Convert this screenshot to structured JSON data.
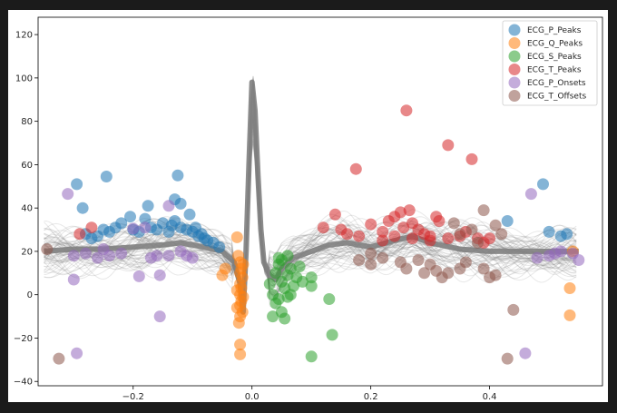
{
  "chart_data": {
    "type": "scatter",
    "title": "",
    "xlabel": "",
    "ylabel": "",
    "xlim": [
      -0.36,
      0.59
    ],
    "ylim": [
      -42,
      128
    ],
    "x_ticks": [
      -0.2,
      0.0,
      0.2,
      0.4
    ],
    "x_tick_labels": [
      "−0.2",
      "0.0",
      "0.2",
      "0.4"
    ],
    "y_ticks": [
      -40,
      -20,
      0,
      20,
      40,
      60,
      80,
      100,
      120
    ],
    "y_tick_labels": [
      "−40",
      "−20",
      "0",
      "20",
      "40",
      "60",
      "80",
      "100",
      "120"
    ],
    "grid": false,
    "legend_position": "top-right",
    "background_line_color": "#808080",
    "average_line": {
      "x": [
        -0.35,
        -0.3,
        -0.25,
        -0.2,
        -0.15,
        -0.12,
        -0.08,
        -0.05,
        -0.03,
        -0.02,
        -0.015,
        -0.01,
        -0.005,
        0.0,
        0.005,
        0.01,
        0.015,
        0.02,
        0.03,
        0.04,
        0.05,
        0.07,
        0.1,
        0.13,
        0.16,
        0.2,
        0.24,
        0.27,
        0.3,
        0.35,
        0.4,
        0.45,
        0.5,
        0.55
      ],
      "y": [
        20,
        21,
        21,
        22,
        23,
        24,
        22,
        20,
        15,
        5,
        -8,
        20,
        60,
        98,
        85,
        55,
        30,
        15,
        9,
        7,
        12,
        17,
        20,
        23,
        24,
        22,
        25,
        27,
        24,
        21,
        20,
        20,
        20,
        20
      ]
    },
    "series": [
      {
        "name": "ECG_P_Peaks",
        "color": "#1f77b4",
        "points": [
          [
            -0.295,
            51
          ],
          [
            -0.285,
            40
          ],
          [
            -0.245,
            54.5
          ],
          [
            -0.205,
            36
          ],
          [
            -0.175,
            41
          ],
          [
            -0.13,
            44
          ],
          [
            -0.125,
            55
          ],
          [
            -0.12,
            42
          ],
          [
            -0.105,
            37
          ],
          [
            -0.095,
            31
          ],
          [
            -0.085,
            28
          ],
          [
            -0.075,
            25
          ],
          [
            -0.065,
            24
          ],
          [
            -0.055,
            22
          ],
          [
            -0.23,
            31
          ],
          [
            -0.22,
            33
          ],
          [
            -0.2,
            30
          ],
          [
            -0.19,
            29
          ],
          [
            -0.18,
            35
          ],
          [
            -0.17,
            31
          ],
          [
            -0.16,
            30
          ],
          [
            -0.15,
            33
          ],
          [
            -0.14,
            29
          ],
          [
            -0.135,
            32
          ],
          [
            -0.13,
            34
          ],
          [
            -0.12,
            31
          ],
          [
            -0.11,
            30
          ],
          [
            -0.1,
            29
          ],
          [
            -0.28,
            28
          ],
          [
            -0.27,
            26
          ],
          [
            -0.26,
            27
          ],
          [
            -0.25,
            30
          ],
          [
            -0.24,
            29
          ],
          [
            -0.09,
            27
          ],
          [
            -0.08,
            26
          ],
          [
            0.43,
            34
          ],
          [
            0.49,
            51
          ],
          [
            0.5,
            29
          ],
          [
            0.52,
            27
          ],
          [
            0.53,
            28
          ]
        ]
      },
      {
        "name": "ECG_Q_Peaks",
        "color": "#ff7f0e",
        "points": [
          [
            -0.025,
            26.5
          ],
          [
            -0.02,
            15
          ],
          [
            -0.02,
            10
          ],
          [
            -0.02,
            5
          ],
          [
            -0.02,
            0
          ],
          [
            -0.02,
            -5
          ],
          [
            -0.02,
            -10
          ],
          [
            -0.018,
            12
          ],
          [
            -0.018,
            3
          ],
          [
            -0.018,
            -3
          ],
          [
            -0.016,
            8
          ],
          [
            -0.016,
            -8
          ],
          [
            -0.025,
            2
          ],
          [
            -0.025,
            -6
          ],
          [
            -0.022,
            -13
          ],
          [
            -0.015,
            14
          ],
          [
            -0.015,
            -1
          ],
          [
            -0.023,
            18
          ],
          [
            -0.02,
            -23
          ],
          [
            -0.02,
            -27.5
          ],
          [
            -0.05,
            9
          ],
          [
            -0.045,
            12
          ],
          [
            0.535,
            3
          ],
          [
            0.535,
            -9.5
          ],
          [
            0.54,
            20
          ]
        ]
      },
      {
        "name": "ECG_S_Peaks",
        "color": "#2ca02c",
        "points": [
          [
            0.03,
            5
          ],
          [
            0.035,
            0
          ],
          [
            0.035,
            -10
          ],
          [
            0.04,
            10
          ],
          [
            0.04,
            -4
          ],
          [
            0.045,
            14
          ],
          [
            0.045,
            -2
          ],
          [
            0.05,
            6
          ],
          [
            0.05,
            -8
          ],
          [
            0.055,
            3
          ],
          [
            0.055,
            -11
          ],
          [
            0.06,
            9
          ],
          [
            0.06,
            -1
          ],
          [
            0.065,
            12
          ],
          [
            0.065,
            0
          ],
          [
            0.07,
            4
          ],
          [
            0.075,
            8
          ],
          [
            0.08,
            13
          ],
          [
            0.085,
            6
          ],
          [
            0.1,
            4
          ],
          [
            0.1,
            8
          ],
          [
            0.1,
            -28.5
          ],
          [
            0.13,
            -2
          ],
          [
            0.135,
            -18.5
          ],
          [
            0.05,
            16
          ],
          [
            0.06,
            18
          ],
          [
            0.045,
            17
          ]
        ]
      },
      {
        "name": "ECG_T_Peaks",
        "color": "#d62728",
        "points": [
          [
            0.12,
            31
          ],
          [
            0.14,
            37
          ],
          [
            0.15,
            30
          ],
          [
            0.175,
            58
          ],
          [
            0.2,
            32.5
          ],
          [
            0.22,
            29
          ],
          [
            0.23,
            34
          ],
          [
            0.24,
            36
          ],
          [
            0.25,
            38
          ],
          [
            0.255,
            31
          ],
          [
            0.26,
            85
          ],
          [
            0.265,
            39
          ],
          [
            0.27,
            33
          ],
          [
            0.28,
            30
          ],
          [
            0.29,
            28
          ],
          [
            0.3,
            27
          ],
          [
            0.31,
            36
          ],
          [
            0.315,
            34
          ],
          [
            0.33,
            69
          ],
          [
            0.35,
            27
          ],
          [
            0.36,
            29
          ],
          [
            0.37,
            62.5
          ],
          [
            0.38,
            26
          ],
          [
            0.39,
            24
          ],
          [
            0.4,
            26
          ],
          [
            0.27,
            26
          ],
          [
            0.24,
            27
          ],
          [
            0.22,
            25
          ],
          [
            0.16,
            28
          ],
          [
            0.18,
            27
          ],
          [
            0.3,
            25
          ],
          [
            0.33,
            26
          ],
          [
            -0.27,
            31
          ],
          [
            -0.29,
            28
          ]
        ]
      },
      {
        "name": "ECG_P_Onsets",
        "color": "#9467bd",
        "points": [
          [
            -0.31,
            46.5
          ],
          [
            -0.3,
            7
          ],
          [
            -0.295,
            -27
          ],
          [
            -0.19,
            8.5
          ],
          [
            -0.16,
            18
          ],
          [
            -0.155,
            9
          ],
          [
            -0.155,
            -10
          ],
          [
            -0.14,
            41
          ],
          [
            -0.2,
            30.5
          ],
          [
            -0.18,
            31
          ],
          [
            -0.22,
            19
          ],
          [
            -0.24,
            18
          ],
          [
            -0.26,
            17
          ],
          [
            -0.28,
            19
          ],
          [
            -0.3,
            18
          ],
          [
            -0.25,
            21
          ],
          [
            -0.17,
            17
          ],
          [
            -0.14,
            18
          ],
          [
            -0.12,
            20
          ],
          [
            -0.11,
            18
          ],
          [
            -0.1,
            17
          ],
          [
            0.46,
            -27
          ],
          [
            0.47,
            46.5
          ],
          [
            0.48,
            17
          ],
          [
            0.5,
            18
          ],
          [
            0.51,
            19
          ],
          [
            0.52,
            20
          ],
          [
            0.55,
            16
          ],
          [
            0.54,
            19
          ]
        ]
      },
      {
        "name": "ECG_T_Offsets",
        "color": "#8c564b",
        "points": [
          [
            -0.345,
            21
          ],
          [
            -0.325,
            -29.5
          ],
          [
            0.34,
            33
          ],
          [
            0.35,
            28
          ],
          [
            0.37,
            30
          ],
          [
            0.38,
            24
          ],
          [
            0.39,
            39
          ],
          [
            0.41,
            32
          ],
          [
            0.42,
            28
          ],
          [
            0.43,
            -29.5
          ],
          [
            0.44,
            -7
          ],
          [
            0.41,
            9
          ],
          [
            0.4,
            8
          ],
          [
            0.39,
            12
          ],
          [
            0.36,
            15
          ],
          [
            0.35,
            12
          ],
          [
            0.33,
            10
          ],
          [
            0.32,
            8
          ],
          [
            0.31,
            11
          ],
          [
            0.3,
            14
          ],
          [
            0.28,
            16
          ],
          [
            0.25,
            15
          ],
          [
            0.22,
            17
          ],
          [
            0.2,
            19
          ],
          [
            0.18,
            16
          ],
          [
            0.2,
            14
          ],
          [
            0.26,
            12
          ],
          [
            0.29,
            10
          ]
        ]
      }
    ]
  }
}
